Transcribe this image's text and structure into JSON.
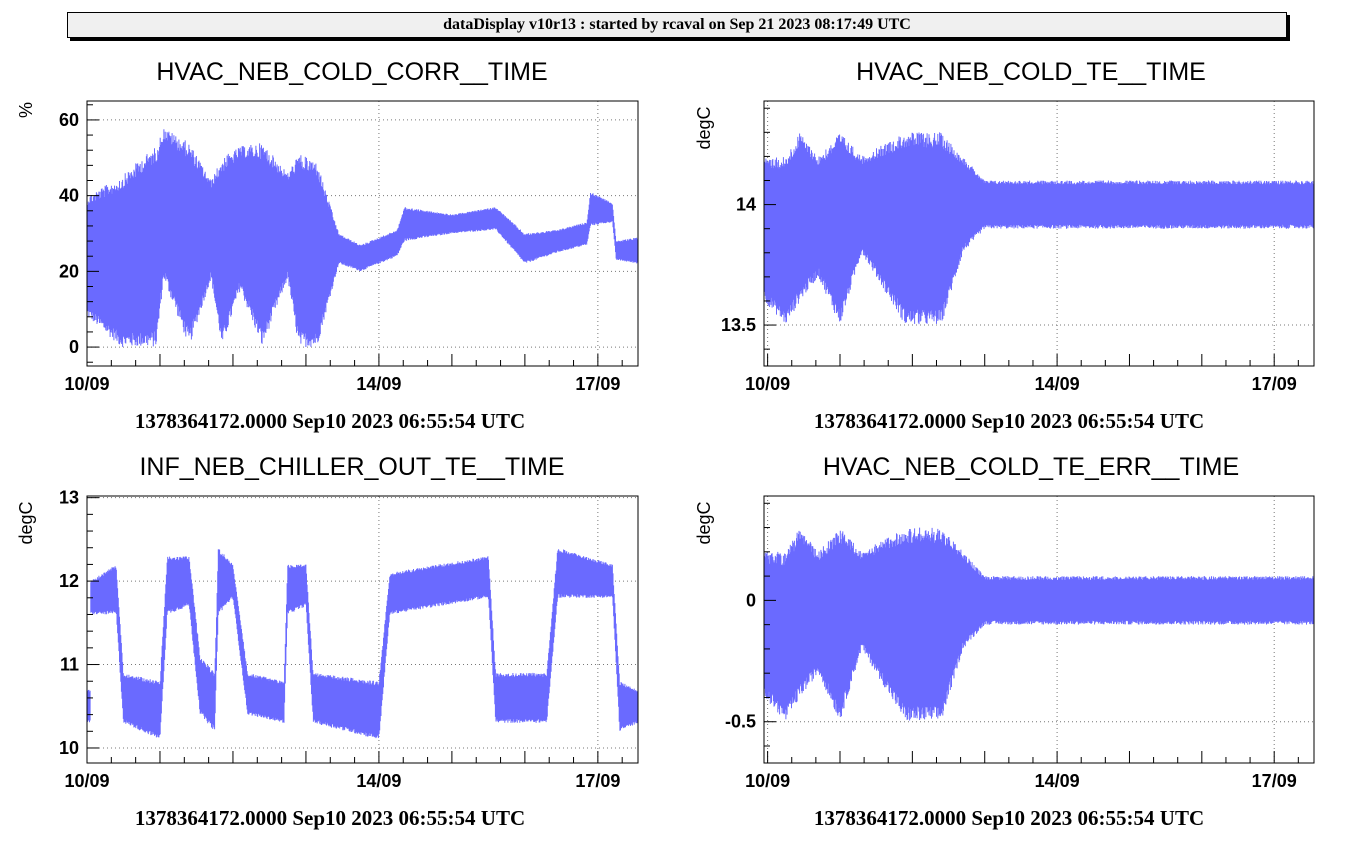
{
  "header": {
    "title": "dataDisplay v10r13 : started by rcaval on Sep 21 2023 08:17:49 UTC"
  },
  "colors": {
    "series": "#6a6aff",
    "grid": "#777777",
    "frame": "#000000"
  },
  "chart_data": [
    {
      "type": "area",
      "title": "HVAC_NEB_COLD_CORR__TIME",
      "ylabel": "%",
      "xlabel": "",
      "x_ticks": [
        "10/09",
        "14/09",
        "17/09"
      ],
      "y_ticks": [
        0,
        20,
        40,
        60
      ],
      "ylim": [
        -5,
        65
      ],
      "xlim_days": [
        10.0,
        17.55
      ],
      "grid": true,
      "footer": "1378364172.0000 Sep10 2023 06:55:54 UTC",
      "series": [
        {
          "envelope": [
            [
              10.0,
              8,
              40
            ],
            [
              10.47,
              0,
              45
            ],
            [
              10.75,
              0,
              50
            ],
            [
              10.95,
              0,
              53
            ],
            [
              11.05,
              18,
              58
            ],
            [
              11.4,
              0,
              54
            ],
            [
              11.7,
              18,
              44
            ],
            [
              11.85,
              0,
              50
            ],
            [
              12.1,
              15,
              53
            ],
            [
              12.4,
              0,
              54
            ],
            [
              12.75,
              18,
              46
            ],
            [
              12.9,
              0,
              51
            ],
            [
              13.15,
              0,
              49
            ],
            [
              13.45,
              22,
              30
            ],
            [
              13.75,
              20,
              27
            ],
            [
              14.25,
              24,
              31
            ],
            [
              14.35,
              28,
              37
            ],
            [
              15.0,
              30,
              35
            ],
            [
              15.6,
              31,
              37
            ],
            [
              16.0,
              22,
              30
            ],
            [
              16.45,
              25,
              31
            ],
            [
              16.85,
              27,
              33
            ],
            [
              16.9,
              32,
              41
            ],
            [
              17.2,
              33,
              38
            ],
            [
              17.25,
              23,
              28
            ],
            [
              17.55,
              22,
              29
            ]
          ]
        }
      ]
    },
    {
      "type": "area",
      "title": "HVAC_NEB_COLD_TE__TIME",
      "ylabel": "degC",
      "xlabel": "",
      "x_ticks": [
        "10/09",
        "14/09",
        "17/09"
      ],
      "y_ticks": [
        13.5,
        14
      ],
      "ylim": [
        13.33,
        14.43
      ],
      "xlim_days": [
        9.95,
        17.55
      ],
      "grid": true,
      "footer": "1378364172.0000 Sep10 2023 06:55:54 UTC",
      "series": [
        {
          "envelope": [
            [
              9.95,
              13.6,
              14.2
            ],
            [
              10.25,
              13.5,
              14.2
            ],
            [
              10.45,
              13.6,
              14.3
            ],
            [
              10.7,
              13.7,
              14.2
            ],
            [
              11.0,
              13.5,
              14.3
            ],
            [
              11.3,
              13.8,
              14.2
            ],
            [
              11.9,
              13.5,
              14.3
            ],
            [
              12.4,
              13.5,
              14.3
            ],
            [
              12.7,
              13.8,
              14.2
            ],
            [
              13.0,
              13.9,
              14.1
            ],
            [
              17.55,
              13.9,
              14.1
            ]
          ]
        }
      ]
    },
    {
      "type": "area",
      "title": "INF_NEB_CHILLER_OUT_TE__TIME",
      "ylabel": "degC",
      "xlabel": "",
      "x_ticks": [
        "10/09",
        "14/09",
        "17/09"
      ],
      "y_ticks": [
        10,
        11,
        12,
        13
      ],
      "ylim": [
        9.82,
        13.02
      ],
      "xlim_days": [
        10.0,
        17.55
      ],
      "grid": true,
      "footer": "1378364172.0000 Sep10 2023 06:55:54 UTC",
      "series": [
        {
          "envelope": [
            [
              10.05,
              11.6,
              12.0
            ],
            [
              10.4,
              11.6,
              12.2
            ],
            [
              10.5,
              10.3,
              10.9
            ],
            [
              11.0,
              10.1,
              10.8
            ],
            [
              11.1,
              11.6,
              12.3
            ],
            [
              11.4,
              11.7,
              12.3
            ],
            [
              11.55,
              10.4,
              11.1
            ],
            [
              11.75,
              10.2,
              10.9
            ],
            [
              11.8,
              11.6,
              12.4
            ],
            [
              12.0,
              11.8,
              12.2
            ],
            [
              12.2,
              10.4,
              10.9
            ],
            [
              12.7,
              10.3,
              10.8
            ],
            [
              12.75,
              11.6,
              12.2
            ],
            [
              13.0,
              11.7,
              12.2
            ],
            [
              13.1,
              10.3,
              10.9
            ],
            [
              14.0,
              10.1,
              10.8
            ],
            [
              14.15,
              11.6,
              12.1
            ],
            [
              15.5,
              11.8,
              12.3
            ],
            [
              15.6,
              10.3,
              10.9
            ],
            [
              16.3,
              10.3,
              10.9
            ],
            [
              16.45,
              11.8,
              12.4
            ],
            [
              17.2,
              11.8,
              12.2
            ],
            [
              17.3,
              10.2,
              10.8
            ],
            [
              17.55,
              10.3,
              10.7
            ]
          ]
        }
      ]
    },
    {
      "type": "area",
      "title": "HVAC_NEB_COLD_TE_ERR__TIME",
      "ylabel": "degC",
      "xlabel": "",
      "x_ticks": [
        "10/09",
        "14/09",
        "17/09"
      ],
      "y_ticks": [
        -0.5,
        0
      ],
      "ylim": [
        -0.67,
        0.43
      ],
      "xlim_days": [
        9.95,
        17.55
      ],
      "grid": true,
      "footer": "1378364172.0000 Sep10 2023 06:55:54 UTC",
      "series": [
        {
          "envelope": [
            [
              9.95,
              -0.4,
              0.2
            ],
            [
              10.25,
              -0.5,
              0.2
            ],
            [
              10.45,
              -0.4,
              0.3
            ],
            [
              10.7,
              -0.3,
              0.2
            ],
            [
              11.0,
              -0.5,
              0.3
            ],
            [
              11.3,
              -0.2,
              0.2
            ],
            [
              11.9,
              -0.5,
              0.3
            ],
            [
              12.4,
              -0.5,
              0.3
            ],
            [
              12.7,
              -0.2,
              0.2
            ],
            [
              13.0,
              -0.1,
              0.1
            ],
            [
              17.55,
              -0.1,
              0.1
            ]
          ]
        }
      ]
    }
  ]
}
